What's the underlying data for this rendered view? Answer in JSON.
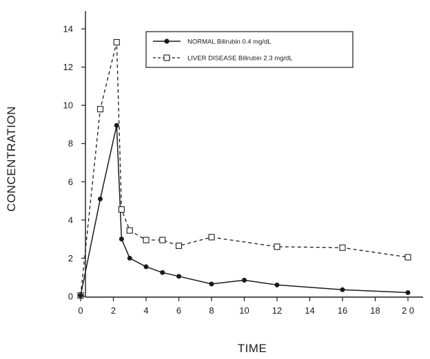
{
  "chart_data": {
    "type": "line",
    "xlabel": "TIME",
    "ylabel": "CONCENTRATION",
    "xlim": [
      0,
      20
    ],
    "ylim": [
      0,
      14
    ],
    "x_ticks": [
      0,
      2,
      4,
      6,
      8,
      10,
      12,
      14,
      16,
      18,
      20
    ],
    "x_tick_labels": [
      "0",
      "2",
      "4",
      "6",
      "8",
      "10",
      "12",
      "14",
      "16",
      "18",
      "2 0"
    ],
    "y_ticks": [
      0,
      2,
      4,
      6,
      8,
      10,
      12,
      14
    ],
    "y_tick_labels": [
      "0",
      "2",
      "4",
      "6",
      "8",
      "10",
      "12",
      "14"
    ],
    "grid": false,
    "legend_position": "top-right",
    "series": [
      {
        "name": "NORMAL Bilirubin 0.4 mg/dL",
        "style": "solid",
        "marker": "filled-circle",
        "points": [
          [
            0,
            0.05
          ],
          [
            1.2,
            5.1
          ],
          [
            2.2,
            8.95
          ],
          [
            2.5,
            3.0
          ],
          [
            3,
            2.0
          ],
          [
            4,
            1.55
          ],
          [
            5,
            1.25
          ],
          [
            6,
            1.05
          ],
          [
            8,
            0.65
          ],
          [
            10,
            0.85
          ],
          [
            12,
            0.6
          ],
          [
            16,
            0.35
          ],
          [
            20,
            0.2
          ]
        ]
      },
      {
        "name": "LIVER DISEASE Bilirubin 2.3 mg/dL",
        "style": "dashed",
        "marker": "open-square",
        "points": [
          [
            0,
            0.05
          ],
          [
            1.2,
            9.8
          ],
          [
            2.2,
            13.3
          ],
          [
            2.5,
            4.55
          ],
          [
            3,
            3.45
          ],
          [
            4,
            2.95
          ],
          [
            5,
            2.95
          ],
          [
            6,
            2.65
          ],
          [
            8,
            3.1
          ],
          [
            12,
            2.6
          ],
          [
            16,
            2.55
          ],
          [
            20,
            2.05
          ]
        ]
      }
    ]
  }
}
